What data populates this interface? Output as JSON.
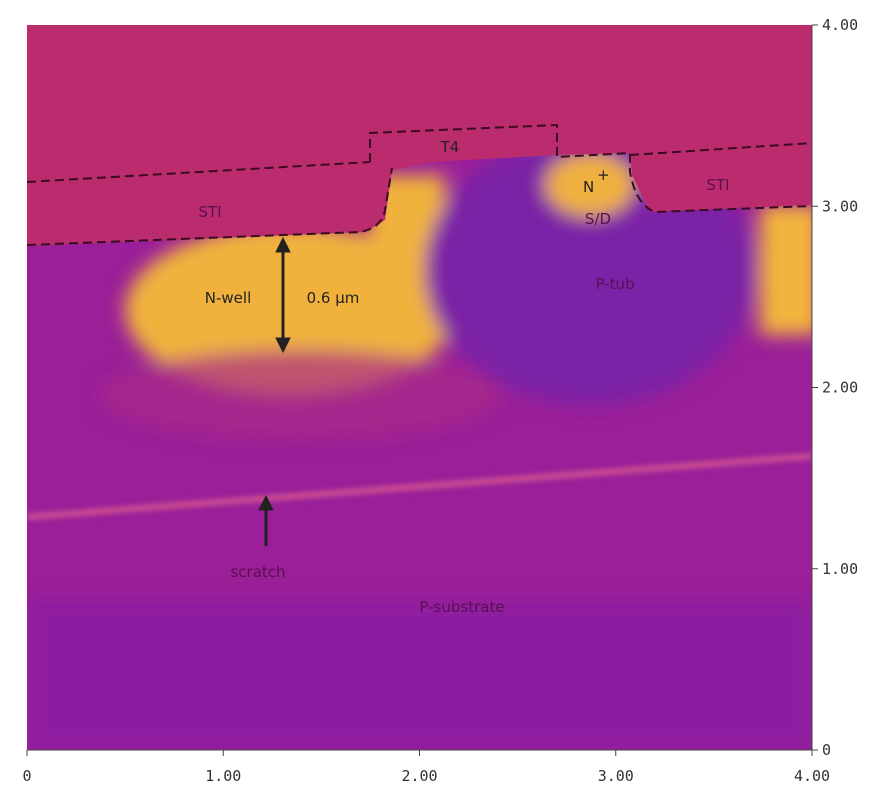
{
  "axes": {
    "xticks": [
      "0",
      "1.00",
      "2.00",
      "3.00",
      "4.00"
    ],
    "yticks": [
      "0",
      "1.00",
      "2.00",
      "3.00",
      "4.00"
    ]
  },
  "annotations": {
    "sti_left": "STI",
    "t4": "T4",
    "n_plus": "N",
    "n_plus_sup": "+",
    "sd": "S/D",
    "sti_right": "STI",
    "p_tub": "P-tub",
    "n_well": "N-well",
    "depth": "0.6 µm",
    "scratch": "scratch",
    "p_substrate": "P-substrate"
  }
}
